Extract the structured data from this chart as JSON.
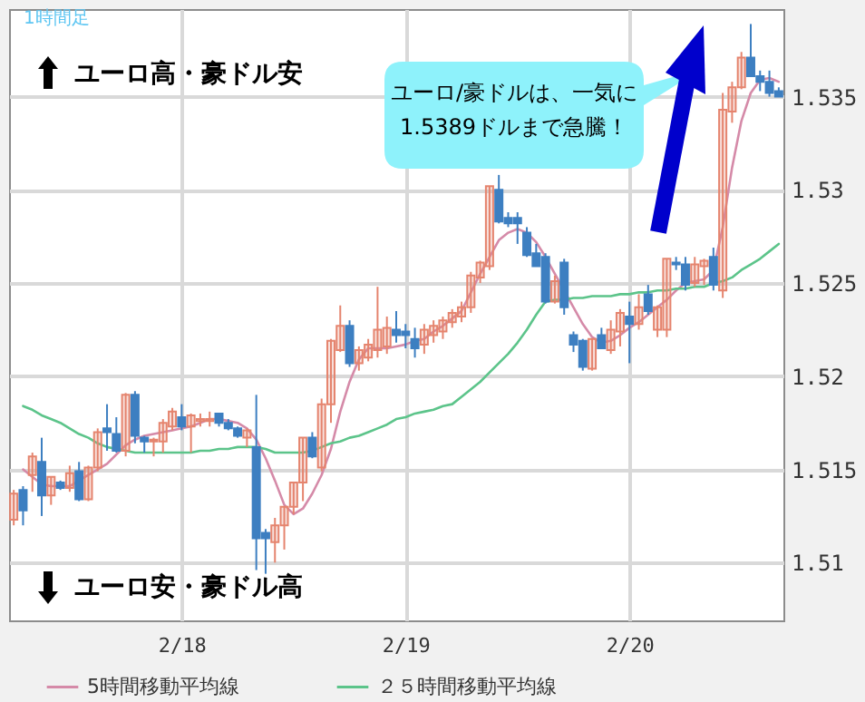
{
  "chart_data": {
    "type": "candlestick",
    "annotations": [
      "1時間足",
      "ユーロ高・豪ドル安",
      "ユーロ安・豪ドル高",
      "ユーロ/豪ドルは、一気に\n1.5389ドルまで急騰！"
    ],
    "categories": [
      null,
      null,
      null,
      null,
      null,
      null,
      null,
      null,
      null,
      null,
      null,
      null,
      null,
      null,
      null,
      null,
      null,
      null,
      "2/18",
      null,
      null,
      null,
      null,
      null,
      null,
      null,
      null,
      null,
      null,
      null,
      null,
      null,
      null,
      null,
      null,
      null,
      null,
      null,
      null,
      null,
      null,
      null,
      "2/19",
      null,
      null,
      null,
      null,
      null,
      null,
      null,
      null,
      null,
      null,
      null,
      null,
      null,
      null,
      null,
      null,
      null,
      null,
      null,
      null,
      null,
      null,
      null,
      "2/20",
      null,
      null,
      null,
      null,
      null,
      null,
      null,
      null,
      null,
      null,
      null,
      null,
      null,
      null,
      null,
      null
    ],
    "ohlc": [
      [
        1.5123,
        1.5139,
        1.512,
        1.5137
      ],
      [
        1.5139,
        1.5141,
        1.512,
        1.5128
      ],
      [
        1.5147,
        1.5159,
        1.5138,
        1.5157
      ],
      [
        1.5154,
        1.5167,
        1.5125,
        1.5136
      ],
      [
        1.5136,
        1.5146,
        1.5131,
        1.5146
      ],
      [
        1.5143,
        1.5144,
        1.5139,
        1.514
      ],
      [
        1.514,
        1.5152,
        1.5138,
        1.5148
      ],
      [
        1.5149,
        1.5154,
        1.5133,
        1.5134
      ],
      [
        1.5134,
        1.5152,
        1.5133,
        1.5151
      ],
      [
        1.5151,
        1.5172,
        1.5149,
        1.517
      ],
      [
        1.5172,
        1.5185,
        1.516,
        1.517
      ],
      [
        1.5169,
        1.5178,
        1.5159,
        1.516
      ],
      [
        1.516,
        1.5191,
        1.5157,
        1.519
      ],
      [
        1.519,
        1.5192,
        1.5164,
        1.5168
      ],
      [
        1.5167,
        1.5168,
        1.5159,
        1.5165
      ],
      [
        1.5165,
        1.5167,
        1.5157,
        1.5166
      ],
      [
        1.5165,
        1.5177,
        1.5159,
        1.5175
      ],
      [
        1.5173,
        1.5183,
        1.5171,
        1.5181
      ],
      [
        1.5178,
        1.5185,
        1.5171,
        1.5173
      ],
      [
        1.5173,
        1.518,
        1.5159,
        1.5179
      ],
      [
        1.5176,
        1.518,
        1.5173,
        1.5177
      ],
      [
        1.5176,
        1.5181,
        1.5173,
        1.5177
      ],
      [
        1.518,
        1.518,
        1.5173,
        1.5175
      ],
      [
        1.5175,
        1.5177,
        1.5171,
        1.5172
      ],
      [
        1.5172,
        1.5173,
        1.5167,
        1.5168
      ],
      [
        1.5167,
        1.5172,
        1.5162,
        1.5171
      ],
      [
        1.5162,
        1.519,
        1.5096,
        1.5113
      ],
      [
        1.5116,
        1.5118,
        1.5094,
        1.5113
      ],
      [
        1.5111,
        1.5124,
        1.51,
        1.512
      ],
      [
        1.512,
        1.513,
        1.5107,
        1.513
      ],
      [
        1.513,
        1.5143,
        1.5126,
        1.5143
      ],
      [
        1.5143,
        1.5167,
        1.5133,
        1.5167
      ],
      [
        1.5167,
        1.517,
        1.5156,
        1.5157
      ],
      [
        1.5151,
        1.5188,
        1.5149,
        1.5185
      ],
      [
        1.5185,
        1.522,
        1.5175,
        1.5219
      ],
      [
        1.5214,
        1.5238,
        1.5213,
        1.5227
      ],
      [
        1.5227,
        1.523,
        1.5205,
        1.5207
      ],
      [
        1.5207,
        1.5216,
        1.5203,
        1.5214
      ],
      [
        1.521,
        1.522,
        1.5208,
        1.5217
      ],
      [
        1.5214,
        1.5248,
        1.521,
        1.5225
      ],
      [
        1.5216,
        1.5232,
        1.5212,
        1.5226
      ],
      [
        1.5225,
        1.5235,
        1.5218,
        1.5222
      ],
      [
        1.5224,
        1.5228,
        1.5215,
        1.5222
      ],
      [
        1.522,
        1.5226,
        1.521,
        1.5215
      ],
      [
        1.5217,
        1.5228,
        1.5212,
        1.5225
      ],
      [
        1.5222,
        1.523,
        1.5218,
        1.5227
      ],
      [
        1.5224,
        1.5232,
        1.522,
        1.523
      ],
      [
        1.5229,
        1.5236,
        1.5226,
        1.5234
      ],
      [
        1.5232,
        1.524,
        1.5229,
        1.5237
      ],
      [
        1.5237,
        1.5256,
        1.5234,
        1.5254
      ],
      [
        1.5253,
        1.5262,
        1.525,
        1.5261
      ],
      [
        1.5259,
        1.5302,
        1.5257,
        1.5302
      ],
      [
        1.53,
        1.5308,
        1.5282,
        1.5283
      ],
      [
        1.5285,
        1.5288,
        1.528,
        1.5282
      ],
      [
        1.5285,
        1.5288,
        1.5271,
        1.5282
      ],
      [
        1.5277,
        1.528,
        1.5264,
        1.5265
      ],
      [
        1.5266,
        1.5271,
        1.5259,
        1.5259
      ],
      [
        1.5264,
        1.5266,
        1.5239,
        1.524
      ],
      [
        1.524,
        1.5254,
        1.5239,
        1.5251
      ],
      [
        1.5261,
        1.5263,
        1.5233,
        1.5237
      ],
      [
        1.5222,
        1.5224,
        1.5213,
        1.5217
      ],
      [
        1.5219,
        1.522,
        1.5203,
        1.5205
      ],
      [
        1.5204,
        1.522,
        1.5203,
        1.522
      ],
      [
        1.5222,
        1.5226,
        1.5215,
        1.5215
      ],
      [
        1.5214,
        1.523,
        1.5212,
        1.5225
      ],
      [
        1.5224,
        1.5236,
        1.5216,
        1.5234
      ],
      [
        1.5232,
        1.524,
        1.5207,
        1.5228
      ],
      [
        1.5228,
        1.5244,
        1.5225,
        1.5237
      ],
      [
        1.5244,
        1.5249,
        1.5233,
        1.5235
      ],
      [
        1.5225,
        1.5238,
        1.5221,
        1.5237
      ],
      [
        1.5225,
        1.5263,
        1.5221,
        1.5263
      ],
      [
        1.5261,
        1.5264,
        1.5257,
        1.526
      ],
      [
        1.526,
        1.5264,
        1.5246,
        1.5249
      ],
      [
        1.525,
        1.5264,
        1.5248,
        1.526
      ],
      [
        1.5259,
        1.5263,
        1.5249,
        1.5262
      ],
      [
        1.5264,
        1.5269,
        1.5246,
        1.5249
      ],
      [
        1.5246,
        1.5352,
        1.5242,
        1.5343
      ],
      [
        1.5342,
        1.5358,
        1.5336,
        1.5355
      ],
      [
        1.5355,
        1.5374,
        1.5354,
        1.5371
      ],
      [
        1.5371,
        1.5389,
        1.5361,
        1.5361
      ],
      [
        1.5361,
        1.5364,
        1.5353,
        1.5358
      ],
      [
        1.5358,
        1.5364,
        1.535,
        1.5352
      ],
      [
        1.5353,
        1.5355,
        1.535,
        1.535
      ]
    ],
    "colors": [
      "#e5846e",
      "#3d7fc1",
      "#e5846e",
      "#3d7fc1",
      "#e5846e",
      "#3d7fc1",
      "#e5846e",
      "#3d7fc1",
      "#e5846e",
      "#e5846e",
      "#3d7fc1",
      "#3d7fc1",
      "#e5846e",
      "#3d7fc1",
      "#3d7fc1",
      "#e5846e",
      "#e5846e",
      "#e5846e",
      "#3d7fc1",
      "#e5846e",
      "#e5846e",
      "#e5846e",
      "#3d7fc1",
      "#3d7fc1",
      "#3d7fc1",
      "#e5846e",
      "#3d7fc1",
      "#3d7fc1",
      "#e5846e",
      "#e5846e",
      "#e5846e",
      "#e5846e",
      "#3d7fc1",
      "#e5846e",
      "#e5846e",
      "#e5846e",
      "#3d7fc1",
      "#e5846e",
      "#e5846e",
      "#e5846e",
      "#e5846e",
      "#3d7fc1",
      "#3d7fc1",
      "#3d7fc1",
      "#e5846e",
      "#e5846e",
      "#e5846e",
      "#e5846e",
      "#e5846e",
      "#e5846e",
      "#e5846e",
      "#e5846e",
      "#3d7fc1",
      "#3d7fc1",
      "#3d7fc1",
      "#3d7fc1",
      "#3d7fc1",
      "#3d7fc1",
      "#e5846e",
      "#3d7fc1",
      "#3d7fc1",
      "#3d7fc1",
      "#e5846e",
      "#3d7fc1",
      "#e5846e",
      "#e5846e",
      "#3d7fc1",
      "#e5846e",
      "#3d7fc1",
      "#e5846e",
      "#e5846e",
      "#3d7fc1",
      "#3d7fc1",
      "#e5846e",
      "#e5846e",
      "#3d7fc1",
      "#e5846e",
      "#e5846e",
      "#e5846e",
      "#3d7fc1",
      "#3d7fc1",
      "#3d7fc1",
      "#3d7fc1"
    ],
    "series": [
      {
        "name": "5時間移動平均線",
        "type": "line",
        "color": "#d58aa8",
        "values": [
          null,
          1.515,
          1.5146,
          1.5142,
          1.5141,
          1.5141,
          1.5141,
          1.5144,
          1.5147,
          1.515,
          1.5153,
          1.5158,
          1.5163,
          1.5166,
          1.5168,
          1.5169,
          1.517,
          1.5171,
          1.5172,
          1.5173,
          1.5175,
          1.5177,
          1.5177,
          1.5176,
          1.5175,
          1.5172,
          1.5166,
          1.5156,
          1.5144,
          1.5131,
          1.5126,
          1.5129,
          1.5137,
          1.5147,
          1.5161,
          1.5181,
          1.5197,
          1.5209,
          1.5215,
          1.5215,
          1.5215,
          1.5216,
          1.5217,
          1.5219,
          1.522,
          1.5224,
          1.5227,
          1.5231,
          1.5235,
          1.5245,
          1.5255,
          1.5264,
          1.5273,
          1.5277,
          1.5279,
          1.5277,
          1.5272,
          1.5264,
          1.5255,
          1.5246,
          1.5237,
          1.5228,
          1.5221,
          1.5218,
          1.5219,
          1.5222,
          1.5226,
          1.5229,
          1.5233,
          1.5237,
          1.5241,
          1.5246,
          1.525,
          1.5251,
          1.5252,
          1.5257,
          1.528,
          1.5312,
          1.5337,
          1.5352,
          1.5359,
          1.536,
          1.5358
        ]
      },
      {
        "name": "２５時間移動平均線",
        "type": "line",
        "color": "#5cc48a",
        "values": [
          null,
          1.5184,
          1.5182,
          1.5179,
          1.5177,
          1.5175,
          1.5172,
          1.5169,
          1.5167,
          1.5164,
          1.5162,
          1.5161,
          1.516,
          1.5159,
          1.5159,
          1.5159,
          1.5159,
          1.5159,
          1.5159,
          1.5159,
          1.516,
          1.516,
          1.5161,
          1.5161,
          1.5162,
          1.5162,
          1.5162,
          1.5161,
          1.5159,
          1.5159,
          1.5159,
          1.5159,
          1.516,
          1.5162,
          1.5164,
          1.5165,
          1.5167,
          1.5168,
          1.517,
          1.5172,
          1.5174,
          1.5177,
          1.5178,
          1.518,
          1.5181,
          1.5182,
          1.5184,
          1.5185,
          1.5189,
          1.5193,
          1.5197,
          1.5202,
          1.5207,
          1.5212,
          1.5218,
          1.5225,
          1.5233,
          1.524,
          1.5241,
          1.5241,
          1.5242,
          1.5242,
          1.5243,
          1.5243,
          1.5243,
          1.5244,
          1.5244,
          1.5245,
          1.5245,
          1.5246,
          1.5246,
          1.5247,
          1.5247,
          1.5248,
          1.5248,
          1.525,
          1.5251,
          1.5253,
          1.5257,
          1.526,
          1.5263,
          1.5267,
          1.5271
        ]
      }
    ],
    "ylim": [
      1.5069,
      1.5397
    ],
    "yticks": [
      1.51,
      1.515,
      1.52,
      1.525,
      1.53,
      1.535
    ],
    "grid": true,
    "legend": "bottom"
  }
}
